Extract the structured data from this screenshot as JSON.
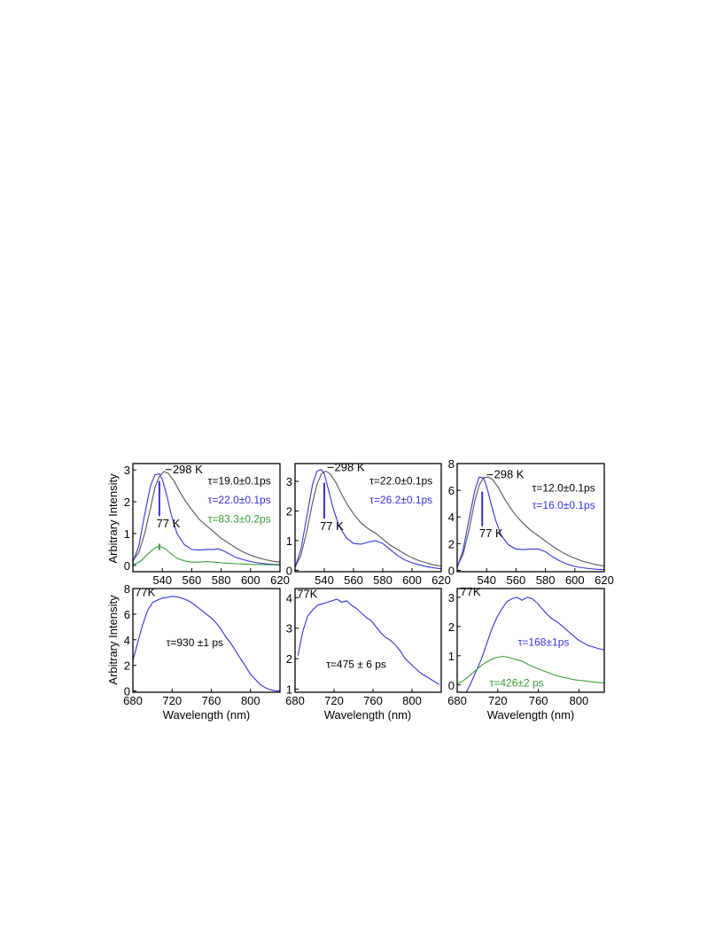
{
  "figure": {
    "ylabel": "Arbitrary Intensity",
    "xlabel": "Wavelength (nm)"
  },
  "colors": {
    "black": "#555555",
    "blue": "#3333dd",
    "green": "#3a9a3a"
  },
  "chart_data": [
    {
      "type": "line",
      "xlim": [
        520,
        620
      ],
      "ylim": [
        -0.2,
        3.2
      ],
      "xticks": [
        540,
        560,
        580,
        600,
        620
      ],
      "yticks": [
        0,
        1,
        2,
        3
      ],
      "grid": false,
      "annotations": [
        {
          "text": "298 K",
          "x": 547,
          "y": 2.9,
          "color": "black"
        },
        {
          "text": "77 K",
          "x": 536,
          "y": 1.2,
          "color": "black"
        },
        {
          "text": "τ=19.0±0.1ps",
          "x": 571,
          "y": 2.55,
          "color": "black"
        },
        {
          "text": "τ=22.0±0.1ps",
          "x": 571,
          "y": 1.95,
          "color": "blue"
        },
        {
          "text": "τ=83.3±0.2ps",
          "x": 571,
          "y": 1.35,
          "color": "green"
        }
      ],
      "markers": [
        {
          "x": 538,
          "y1": 1.55,
          "y2": 2.65,
          "color": "blue"
        },
        {
          "x": 538,
          "y1": 0.48,
          "y2": 0.68,
          "color": "green"
        }
      ],
      "series": [
        {
          "color": "black",
          "x": [
            520,
            524,
            528,
            532,
            535,
            538,
            541,
            544,
            548,
            552,
            556,
            560,
            565,
            570,
            575,
            580,
            585,
            590,
            595,
            600,
            605,
            610,
            615,
            620
          ],
          "y": [
            0.15,
            0.4,
            1.0,
            1.8,
            2.45,
            2.8,
            2.95,
            2.9,
            2.65,
            2.3,
            2.0,
            1.75,
            1.45,
            1.25,
            1.05,
            0.85,
            0.7,
            0.55,
            0.42,
            0.32,
            0.24,
            0.18,
            0.13,
            0.1
          ]
        },
        {
          "color": "blue",
          "x": [
            520,
            524,
            528,
            532,
            535,
            538,
            540,
            543,
            546,
            550,
            555,
            560,
            565,
            570,
            575,
            578,
            582,
            586,
            590,
            595,
            600,
            605,
            610,
            615,
            620
          ],
          "y": [
            0.1,
            0.6,
            1.6,
            2.5,
            2.85,
            2.88,
            2.7,
            2.2,
            1.6,
            1.0,
            0.65,
            0.5,
            0.48,
            0.5,
            0.5,
            0.52,
            0.45,
            0.35,
            0.25,
            0.18,
            0.12,
            0.08,
            0.05,
            0.03,
            0.02
          ]
        },
        {
          "color": "green",
          "x": [
            520,
            525,
            530,
            535,
            538,
            541,
            545,
            550,
            555,
            560,
            565,
            570,
            575,
            580,
            590,
            600,
            610,
            620
          ],
          "y": [
            0.02,
            0.12,
            0.35,
            0.55,
            0.6,
            0.55,
            0.4,
            0.22,
            0.14,
            0.1,
            0.1,
            0.12,
            0.1,
            0.08,
            0.05,
            0.03,
            0.02,
            0.01
          ]
        }
      ]
    },
    {
      "type": "line",
      "xlim": [
        520,
        620
      ],
      "ylim": [
        -0.05,
        3.6
      ],
      "xticks": [
        540,
        560,
        580,
        600,
        620
      ],
      "yticks": [
        0,
        1,
        2,
        3
      ],
      "grid": false,
      "annotations": [
        {
          "text": "298 K",
          "x": 547,
          "y": 3.35,
          "color": "black"
        },
        {
          "text": "77 K",
          "x": 537,
          "y": 1.35,
          "color": "black"
        },
        {
          "text": "τ=22.0±0.1ps",
          "x": 571,
          "y": 2.9,
          "color": "black"
        },
        {
          "text": "τ=26.2±0.1ps",
          "x": 571,
          "y": 2.25,
          "color": "blue"
        }
      ],
      "markers": [
        {
          "x": 540,
          "y1": 1.75,
          "y2": 2.95,
          "color": "blue"
        }
      ],
      "series": [
        {
          "color": "black",
          "x": [
            520,
            524,
            528,
            532,
            535,
            538,
            541,
            544,
            548,
            552,
            556,
            560,
            565,
            570,
            575,
            580,
            585,
            590,
            595,
            600,
            605,
            610,
            615,
            620
          ],
          "y": [
            0.1,
            0.5,
            1.3,
            2.3,
            2.9,
            3.25,
            3.35,
            3.25,
            2.95,
            2.55,
            2.2,
            1.9,
            1.6,
            1.4,
            1.25,
            1.05,
            0.85,
            0.7,
            0.55,
            0.42,
            0.32,
            0.25,
            0.18,
            0.13
          ]
        },
        {
          "color": "blue",
          "x": [
            520,
            524,
            528,
            532,
            535,
            538,
            540,
            543,
            546,
            550,
            555,
            560,
            565,
            570,
            575,
            580,
            585,
            590,
            595,
            600,
            605,
            610,
            615,
            620
          ],
          "y": [
            0.1,
            0.7,
            1.8,
            2.9,
            3.35,
            3.4,
            3.25,
            2.7,
            2.1,
            1.5,
            1.1,
            0.9,
            0.88,
            0.95,
            1.0,
            0.9,
            0.7,
            0.5,
            0.35,
            0.25,
            0.18,
            0.12,
            0.08,
            0.05
          ]
        }
      ]
    },
    {
      "type": "line",
      "xlim": [
        520,
        620
      ],
      "ylim": [
        -0.1,
        8.0
      ],
      "xticks": [
        540,
        560,
        580,
        600,
        620
      ],
      "yticks": [
        0,
        2,
        4,
        6,
        8
      ],
      "grid": false,
      "annotations": [
        {
          "text": "298 K",
          "x": 545,
          "y": 6.9,
          "color": "black"
        },
        {
          "text": "77 K",
          "x": 535,
          "y": 2.5,
          "color": "black"
        },
        {
          "text": "τ=12.0±0.1ps",
          "x": 571,
          "y": 5.9,
          "color": "black"
        },
        {
          "text": "τ=16.0±0.1ps",
          "x": 571,
          "y": 4.6,
          "color": "blue"
        }
      ],
      "markers": [
        {
          "x": 537,
          "y1": 3.3,
          "y2": 5.9,
          "color": "blue"
        }
      ],
      "series": [
        {
          "color": "black",
          "x": [
            520,
            524,
            528,
            532,
            535,
            538,
            541,
            544,
            548,
            552,
            556,
            560,
            565,
            570,
            575,
            580,
            585,
            590,
            595,
            600,
            605,
            610,
            615,
            620
          ],
          "y": [
            0.3,
            1.2,
            3.0,
            5.2,
            6.4,
            6.95,
            7.0,
            6.8,
            6.2,
            5.4,
            4.7,
            4.1,
            3.5,
            3.0,
            2.6,
            2.2,
            1.8,
            1.45,
            1.15,
            0.9,
            0.7,
            0.55,
            0.42,
            0.32
          ]
        },
        {
          "color": "blue",
          "x": [
            520,
            524,
            528,
            532,
            535,
            538,
            540,
            543,
            546,
            550,
            555,
            560,
            565,
            570,
            575,
            580,
            585,
            590,
            595,
            600,
            605,
            610,
            615,
            620
          ],
          "y": [
            0.2,
            1.5,
            3.8,
            6.0,
            7.0,
            6.9,
            6.3,
            5.0,
            3.8,
            2.6,
            1.9,
            1.6,
            1.55,
            1.6,
            1.6,
            1.4,
            1.0,
            0.7,
            0.45,
            0.3,
            0.2,
            0.13,
            0.08,
            0.05
          ]
        }
      ]
    },
    {
      "type": "line",
      "xlim": [
        680,
        830
      ],
      "ylim": [
        -0.1,
        8.0
      ],
      "xticks": [
        680,
        720,
        760,
        800
      ],
      "yticks": [
        0,
        2,
        4,
        6,
        8
      ],
      "grid": false,
      "annotations": [
        {
          "text": "77K",
          "x": 682,
          "y": 7.4,
          "color": "black"
        },
        {
          "text": "τ=930 ±1 ps",
          "x": 714,
          "y": 3.5,
          "color": "black"
        }
      ],
      "markers": [],
      "series": [
        {
          "color": "blue",
          "x": [
            680,
            685,
            690,
            695,
            700,
            705,
            710,
            715,
            720,
            725,
            730,
            735,
            740,
            745,
            750,
            755,
            760,
            765,
            770,
            775,
            780,
            785,
            790,
            795,
            800,
            805,
            810,
            815,
            820,
            825,
            830
          ],
          "y": [
            2.4,
            3.8,
            5.2,
            6.3,
            6.9,
            7.1,
            7.25,
            7.3,
            7.4,
            7.35,
            7.25,
            7.1,
            6.9,
            6.6,
            6.3,
            6.0,
            5.7,
            5.3,
            4.8,
            4.2,
            3.7,
            3.1,
            2.5,
            1.9,
            1.3,
            0.9,
            0.5,
            0.25,
            0.1,
            0.02,
            0.0
          ]
        }
      ]
    },
    {
      "type": "line",
      "xlim": [
        680,
        830
      ],
      "ylim": [
        0.9,
        4.3
      ],
      "xticks": [
        680,
        720,
        760,
        800
      ],
      "yticks": [
        1,
        2,
        3,
        4
      ],
      "grid": false,
      "annotations": [
        {
          "text": "77K",
          "x": 682,
          "y": 4.0,
          "color": "black"
        },
        {
          "text": "τ=475 ± 6 ps",
          "x": 712,
          "y": 1.7,
          "color": "black"
        }
      ],
      "markers": [],
      "series": [
        {
          "color": "blue",
          "x": [
            683,
            688,
            693,
            698,
            703,
            708,
            713,
            718,
            723,
            728,
            733,
            738,
            743,
            748,
            753,
            758,
            763,
            768,
            773,
            778,
            783,
            788,
            793,
            798,
            803,
            808,
            813,
            818,
            823,
            828
          ],
          "y": [
            2.1,
            2.9,
            3.4,
            3.6,
            3.75,
            3.8,
            3.85,
            3.9,
            3.95,
            3.85,
            3.9,
            3.75,
            3.65,
            3.5,
            3.35,
            3.25,
            3.05,
            2.85,
            2.7,
            2.6,
            2.45,
            2.25,
            2.0,
            1.85,
            1.7,
            1.55,
            1.45,
            1.35,
            1.25,
            1.15
          ]
        }
      ]
    },
    {
      "type": "line",
      "xlim": [
        680,
        825
      ],
      "ylim": [
        -0.25,
        3.3
      ],
      "xticks": [
        680,
        720,
        760,
        800
      ],
      "yticks": [
        0,
        1,
        2,
        3
      ],
      "grid": false,
      "annotations": [
        {
          "text": "77K",
          "x": 683,
          "y": 3.05,
          "color": "black"
        },
        {
          "text": "τ=168±1ps",
          "x": 740,
          "y": 1.35,
          "color": "blue"
        },
        {
          "text": "τ=426±2 ps",
          "x": 712,
          "y": -0.05,
          "color": "green"
        }
      ],
      "markers": [],
      "series": [
        {
          "color": "blue",
          "x": [
            689,
            694,
            699,
            704,
            709,
            714,
            719,
            724,
            729,
            734,
            739,
            744,
            749,
            754,
            759,
            764,
            769,
            774,
            779,
            784,
            789,
            794,
            799,
            804,
            809,
            814,
            819,
            825
          ],
          "y": [
            -0.25,
            0.1,
            0.5,
            0.9,
            1.4,
            1.9,
            2.3,
            2.6,
            2.85,
            2.95,
            3.0,
            2.9,
            3.0,
            2.95,
            2.8,
            2.6,
            2.4,
            2.25,
            2.15,
            2.0,
            1.85,
            1.7,
            1.55,
            1.45,
            1.35,
            1.3,
            1.25,
            1.2
          ]
        },
        {
          "color": "green",
          "x": [
            680,
            685,
            690,
            695,
            700,
            705,
            710,
            715,
            720,
            725,
            730,
            735,
            740,
            745,
            750,
            755,
            760,
            765,
            770,
            775,
            780,
            785,
            790,
            795,
            800,
            805,
            810,
            815,
            820,
            825
          ],
          "y": [
            0.05,
            0.12,
            0.25,
            0.4,
            0.55,
            0.7,
            0.8,
            0.9,
            0.95,
            0.98,
            0.95,
            0.9,
            0.85,
            0.8,
            0.7,
            0.62,
            0.55,
            0.48,
            0.42,
            0.35,
            0.3,
            0.26,
            0.22,
            0.18,
            0.16,
            0.14,
            0.12,
            0.1,
            0.08,
            0.07
          ]
        }
      ]
    }
  ]
}
